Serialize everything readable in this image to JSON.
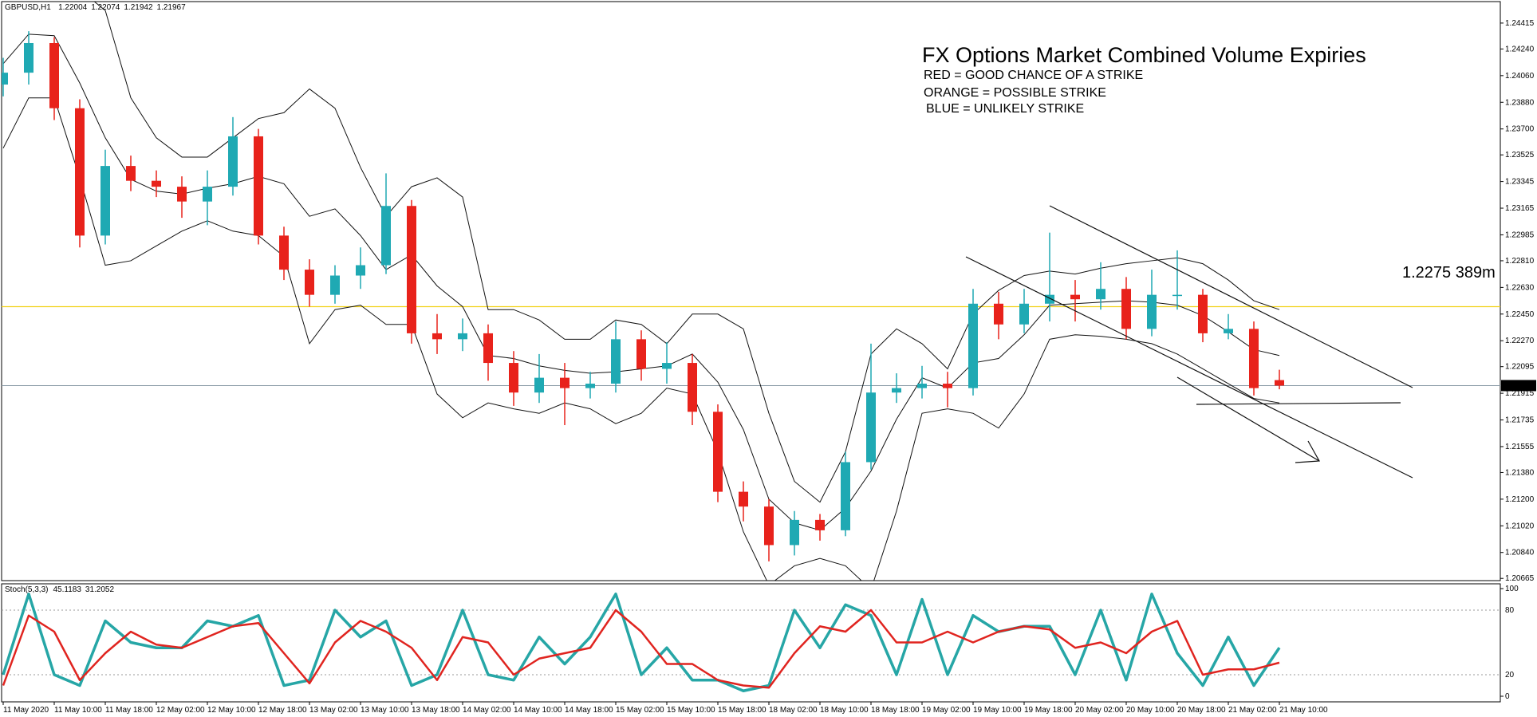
{
  "chart_data": [
    {
      "type": "candlestick",
      "symbol": "GBPUSD,H1",
      "title": "FX Options Market Combined Volume Expiries",
      "legend_lines": [
        {
          "text": "RED = GOOD CHANCE OF A STRIKE",
          "color": "#e8221b"
        },
        {
          "text": "ORANGE = POSSIBLE STRIKE",
          "color": "#f05a1e"
        },
        {
          "text": "BLUE = UNLIKELY STRIKE",
          "color": "#22c3d6"
        }
      ],
      "annotations": [
        {
          "text": "1.2275 389m",
          "color": "#22bcd2"
        }
      ],
      "categories": [
        "11 May 2020",
        "11 May 10:00",
        "11 May 18:00",
        "12 May 02:00",
        "12 May 10:00",
        "12 May 18:00",
        "13 May 02:00",
        "13 May 10:00",
        "13 May 18:00",
        "14 May 02:00",
        "14 May 10:00",
        "14 May 18:00",
        "15 May 02:00",
        "15 May 10:00",
        "15 May 18:00",
        "18 May 02:00",
        "18 May 10:00",
        "18 May 18:00",
        "19 May 02:00",
        "19 May 10:00",
        "19 May 18:00",
        "20 May 02:00",
        "20 May 10:00",
        "20 May 18:00",
        "21 May 02:00",
        "21 May 10:00"
      ],
      "candles": [
        [
          1.24,
          1.2418,
          1.2392,
          1.2408
        ],
        [
          1.2408,
          1.2436,
          1.24,
          1.2428
        ],
        [
          1.2428,
          1.2432,
          1.2376,
          1.2384
        ],
        [
          1.2384,
          1.239,
          1.229,
          1.2298
        ],
        [
          1.2298,
          1.2356,
          1.2292,
          1.2345
        ],
        [
          1.2345,
          1.2352,
          1.2328,
          1.2335
        ],
        [
          1.2335,
          1.2342,
          1.2324,
          1.2331
        ],
        [
          1.2331,
          1.2338,
          1.231,
          1.2321
        ],
        [
          1.2321,
          1.2342,
          1.2305,
          1.2331
        ],
        [
          1.2331,
          1.2378,
          1.2325,
          1.2365
        ],
        [
          1.2365,
          1.237,
          1.2292,
          1.2298
        ],
        [
          1.2298,
          1.2304,
          1.2268,
          1.2275
        ],
        [
          1.2275,
          1.2282,
          1.225,
          1.2258
        ],
        [
          1.2258,
          1.2278,
          1.2252,
          1.2271
        ],
        [
          1.2271,
          1.229,
          1.2262,
          1.2278
        ],
        [
          1.2278,
          1.234,
          1.2272,
          1.2318
        ],
        [
          1.2318,
          1.2322,
          1.2225,
          1.2232
        ],
        [
          1.2232,
          1.2245,
          1.2218,
          1.2228
        ],
        [
          1.2228,
          1.2242,
          1.222,
          1.2232
        ],
        [
          1.2232,
          1.2238,
          1.22,
          1.2212
        ],
        [
          1.2212,
          1.222,
          1.2183,
          1.2192
        ],
        [
          1.2192,
          1.2218,
          1.2185,
          1.2202
        ],
        [
          1.2202,
          1.2212,
          1.217,
          1.2195
        ],
        [
          1.2195,
          1.2206,
          1.2188,
          1.2198
        ],
        [
          1.2198,
          1.224,
          1.2192,
          1.2228
        ],
        [
          1.2228,
          1.2234,
          1.22,
          1.2208
        ],
        [
          1.2208,
          1.2226,
          1.2198,
          1.2212
        ],
        [
          1.2212,
          1.2218,
          1.217,
          1.2179
        ],
        [
          1.2179,
          1.2184,
          1.2118,
          1.2125
        ],
        [
          1.2125,
          1.2132,
          1.2105,
          1.2115
        ],
        [
          1.2115,
          1.212,
          1.2078,
          1.2089
        ],
        [
          1.2089,
          1.2112,
          1.2082,
          1.2106
        ],
        [
          1.2106,
          1.211,
          1.2092,
          1.2099
        ],
        [
          1.2099,
          1.2152,
          1.2095,
          1.2145
        ],
        [
          1.2145,
          1.2225,
          1.214,
          1.2192
        ],
        [
          1.2192,
          1.2205,
          1.2185,
          1.2195
        ],
        [
          1.2195,
          1.221,
          1.2188,
          1.2198
        ],
        [
          1.2198,
          1.2206,
          1.2182,
          1.2195
        ],
        [
          1.2195,
          1.2262,
          1.219,
          1.2252
        ],
        [
          1.2252,
          1.226,
          1.2228,
          1.2238
        ],
        [
          1.2238,
          1.2262,
          1.2232,
          1.2252
        ],
        [
          1.2252,
          1.23,
          1.224,
          1.2258
        ],
        [
          1.2258,
          1.2268,
          1.224,
          1.2255
        ],
        [
          1.2255,
          1.228,
          1.2248,
          1.2262
        ],
        [
          1.2262,
          1.227,
          1.2228,
          1.2235
        ],
        [
          1.2235,
          1.2275,
          1.223,
          1.2258
        ],
        [
          1.2258,
          1.2288,
          1.2248,
          1.2258
        ],
        [
          1.2258,
          1.2262,
          1.2226,
          1.2232
        ],
        [
          1.2232,
          1.2245,
          1.2228,
          1.2235
        ],
        [
          1.2235,
          1.224,
          1.219,
          1.2195
        ],
        [
          1.22004,
          1.22074,
          1.21942,
          1.21967
        ]
      ],
      "up_color": "#1fa9b3",
      "down_color": "#e8221b",
      "bands": {
        "color": "#111111",
        "upper": [
          1.247,
          1.2477,
          1.2474,
          1.2464,
          1.245,
          1.2391,
          1.2364,
          1.2351,
          1.2351,
          1.2364,
          1.2377,
          1.2381,
          1.2397,
          1.2384,
          1.2344,
          1.2311,
          1.2331,
          1.2337,
          1.2324,
          1.2248,
          1.2248,
          1.2241,
          1.2228,
          1.2228,
          1.2241,
          1.2238,
          1.2225,
          1.2245,
          1.2245,
          1.2235,
          1.2178,
          1.2132,
          1.2118,
          1.2152,
          1.2218,
          1.2235,
          1.2225,
          1.2208,
          1.2245,
          1.2261,
          1.2271,
          1.2274,
          1.2272,
          1.2276,
          1.2279,
          1.2281,
          1.2283,
          1.2279,
          1.2268,
          1.2254,
          1.2248
        ],
        "middle": [
          1.2414,
          1.2434,
          1.2433,
          1.2401,
          1.2364,
          1.2336,
          1.2328,
          1.2326,
          1.233,
          1.2333,
          1.2338,
          1.2333,
          1.2311,
          1.2316,
          1.2298,
          1.2275,
          1.2285,
          1.2264,
          1.225,
          1.2217,
          1.2215,
          1.221,
          1.2207,
          1.2205,
          1.2206,
          1.2208,
          1.221,
          1.2218,
          1.2199,
          1.2167,
          1.212,
          1.2104,
          1.2099,
          1.2114,
          1.2139,
          1.2174,
          1.2202,
          1.2195,
          1.2212,
          1.2215,
          1.2231,
          1.2251,
          1.2252,
          1.2253,
          1.2254,
          1.2253,
          1.2251,
          1.2244,
          1.2233,
          1.2221,
          1.2217
        ],
        "lower": [
          1.2357,
          1.2391,
          1.2391,
          1.2337,
          1.2278,
          1.2281,
          1.2291,
          1.2301,
          1.2308,
          1.2301,
          1.2298,
          1.2284,
          1.2225,
          1.2248,
          1.2251,
          1.2238,
          1.2238,
          1.2191,
          1.2175,
          1.2185,
          1.2181,
          1.2178,
          1.2185,
          1.2181,
          1.2171,
          1.2178,
          1.2195,
          1.2191,
          1.2152,
          1.2098,
          1.2062,
          1.2075,
          1.208,
          1.2075,
          1.2059,
          1.2112,
          1.2178,
          1.2181,
          1.2178,
          1.2168,
          1.2191,
          1.2228,
          1.2231,
          1.223,
          1.2228,
          1.2225,
          1.2218,
          1.2208,
          1.2198,
          1.2188,
          1.2185
        ]
      },
      "hlines": [
        {
          "value": 1.225,
          "color": "#f2d21b"
        }
      ],
      "ylim": [
        1.2065,
        1.2456
      ],
      "yticks": [
        1.24415,
        {
          "value": 1.2424,
          "label": "1.24240"
        },
        {
          "value": 1.2406,
          "label": "1.24060"
        },
        {
          "value": 1.2388,
          "label": "1.23880"
        },
        {
          "value": 1.237,
          "label": "1.23700"
        },
        1.23525,
        1.23345,
        1.23165,
        1.22985,
        {
          "value": 1.2281,
          "label": "1.22810"
        },
        {
          "value": 1.2263,
          "label": "1.22630"
        },
        {
          "value": 1.2245,
          "label": "1.22450"
        },
        {
          "value": 1.2227,
          "label": "1.22270"
        },
        1.22095,
        1.21915,
        1.21735,
        1.21555,
        {
          "value": 1.2138,
          "label": "1.21380"
        },
        {
          "value": 1.212,
          "label": "1.21200"
        },
        {
          "value": 1.2102,
          "label": "1.21020"
        },
        {
          "value": 1.2084,
          "label": "1.20840"
        },
        1.20665
      ]
    },
    {
      "type": "line",
      "indicator": "Stoch(5,3,3)",
      "series": [
        {
          "color": "#26a6a6",
          "values": [
            20,
            95,
            20,
            10,
            70,
            50,
            45,
            45,
            70,
            65,
            75,
            10,
            15,
            80,
            55,
            70,
            10,
            20,
            80,
            20,
            15,
            55,
            30,
            55,
            95,
            20,
            45,
            15,
            15,
            5,
            10,
            80,
            45,
            85,
            75,
            20,
            90,
            20,
            75,
            60,
            65,
            65,
            20,
            80,
            15,
            95,
            40,
            10,
            55,
            10,
            45.1183
          ]
        },
        {
          "color": "#e0241f",
          "values": [
            10,
            75,
            60,
            15,
            40,
            60,
            48,
            45,
            55,
            65,
            68,
            40,
            12,
            50,
            70,
            60,
            45,
            15,
            55,
            50,
            20,
            35,
            40,
            45,
            80,
            60,
            30,
            30,
            15,
            10,
            8,
            40,
            65,
            60,
            80,
            50,
            50,
            60,
            50,
            60,
            65,
            62,
            45,
            50,
            40,
            60,
            70,
            20,
            25,
            25,
            31.2052
          ]
        }
      ],
      "ylim": [
        0,
        100
      ],
      "yticks": [
        100,
        80,
        20,
        0
      ]
    }
  ]
}
